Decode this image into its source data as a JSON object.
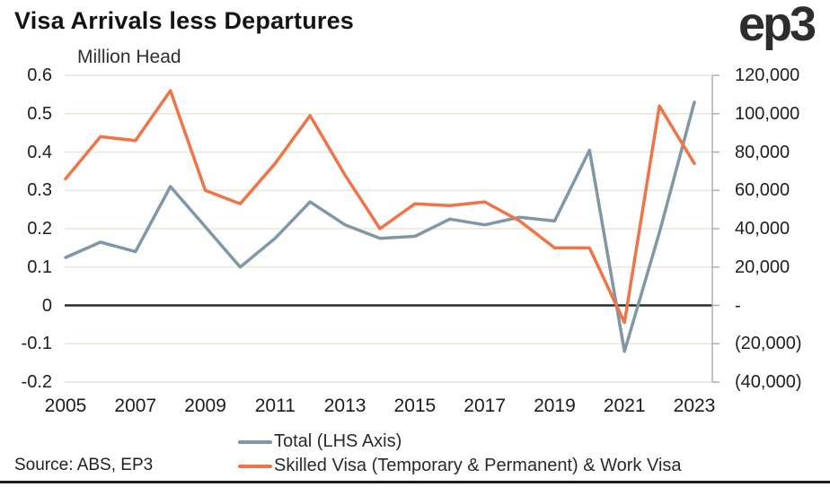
{
  "header": {
    "title": "Visa Arrivals less Departures",
    "unit_label": "Million Head",
    "logo": "ep3"
  },
  "footer": {
    "source": "Source: ABS, EP3"
  },
  "colors": {
    "total_line": "#8097A6",
    "skilled_line": "#EF7549",
    "gridline": "#ECE6D8",
    "zero_line": "#2B2B2B",
    "axis_spine": "#B0AFAC",
    "text": "#1E1E1E",
    "bottom_rule": "#1B1B1B"
  },
  "chart_data": {
    "type": "line",
    "title": "Visa Arrivals less Departures",
    "unit": "Million Head",
    "grid": true,
    "legend_position": "bottom",
    "x": [
      2005,
      2006,
      2007,
      2008,
      2009,
      2010,
      2011,
      2012,
      2013,
      2014,
      2015,
      2016,
      2017,
      2018,
      2019,
      2020,
      2021,
      2022,
      2023
    ],
    "x_tick_labels": [
      "2005",
      "2007",
      "2009",
      "2011",
      "2013",
      "2015",
      "2017",
      "2019",
      "2021",
      "2023"
    ],
    "left_axis": {
      "label": "Million Head",
      "range": [
        -0.2,
        0.6
      ],
      "ticks": [
        0.6,
        0.5,
        0.4,
        0.3,
        0.2,
        0.1,
        0,
        -0.1,
        -0.2
      ],
      "tick_labels": [
        "0.6",
        "0.5",
        "0.4",
        "0.3",
        "0.2",
        "0.1",
        "0",
        "-0.1",
        "-0.2"
      ]
    },
    "right_axis": {
      "range": [
        -40000,
        120000
      ],
      "ticks": [
        120000,
        100000,
        80000,
        60000,
        40000,
        20000,
        0,
        -20000,
        -40000
      ],
      "tick_labels": [
        "120,000",
        "100,000",
        "80,000",
        "60,000",
        "40,000",
        "20,000",
        "-",
        "(20,000)",
        "(40,000)"
      ]
    },
    "series": [
      {
        "name": "Total (LHS Axis)",
        "axis": "left",
        "color": "#8097A6",
        "values": [
          0.125,
          0.165,
          0.14,
          0.31,
          0.205,
          0.1,
          0.175,
          0.27,
          0.21,
          0.175,
          0.18,
          0.225,
          0.21,
          0.23,
          0.22,
          0.405,
          -0.12,
          0.19,
          0.53
        ]
      },
      {
        "name": "Skilled Visa (Temporary & Permanent) & Work Visa",
        "axis": "right",
        "color": "#EF7549",
        "values": [
          66000,
          88000,
          86000,
          112000,
          60000,
          53000,
          74000,
          99000,
          68000,
          40000,
          53000,
          52000,
          54000,
          44000,
          30000,
          30000,
          -9000,
          104000,
          74000
        ]
      }
    ]
  }
}
